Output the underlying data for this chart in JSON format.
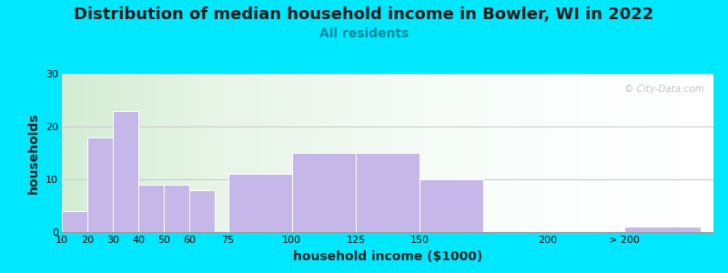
{
  "title": "Distribution of median household income in Bowler, WI in 2022",
  "subtitle": "All residents",
  "xlabel": "household income ($1000)",
  "ylabel": "households",
  "bar_color": "#c5b8e8",
  "bar_edgecolor": "#ffffff",
  "background_outer": "#00e8ff",
  "ylim": [
    0,
    30
  ],
  "yticks": [
    0,
    10,
    20,
    30
  ],
  "bar_lefts": [
    10,
    20,
    30,
    40,
    50,
    60,
    75,
    100,
    125,
    150,
    230
  ],
  "bar_widths": [
    10,
    10,
    10,
    10,
    10,
    10,
    25,
    25,
    25,
    25,
    30
  ],
  "bar_heights": [
    4,
    18,
    23,
    9,
    9,
    8,
    11,
    15,
    15,
    10,
    1
  ],
  "xtick_labels": [
    "10",
    "20",
    "30",
    "40",
    "50",
    "60",
    "75",
    "100",
    "125",
    "150",
    "200",
    "> 200"
  ],
  "xtick_positions": [
    10,
    20,
    30,
    40,
    50,
    60,
    75,
    100,
    125,
    150,
    200,
    230
  ],
  "xlim": [
    10,
    265
  ],
  "title_fontsize": 13,
  "subtitle_fontsize": 10,
  "axis_label_fontsize": 10,
  "tick_fontsize": 8,
  "watermark_text": "© City-Data.com",
  "gradient_colors": [
    "#d4ecd4",
    "#e8f5e8",
    "#f4faf4",
    "#fafffe",
    "#ffffff"
  ],
  "grid_color": "#cccccc"
}
